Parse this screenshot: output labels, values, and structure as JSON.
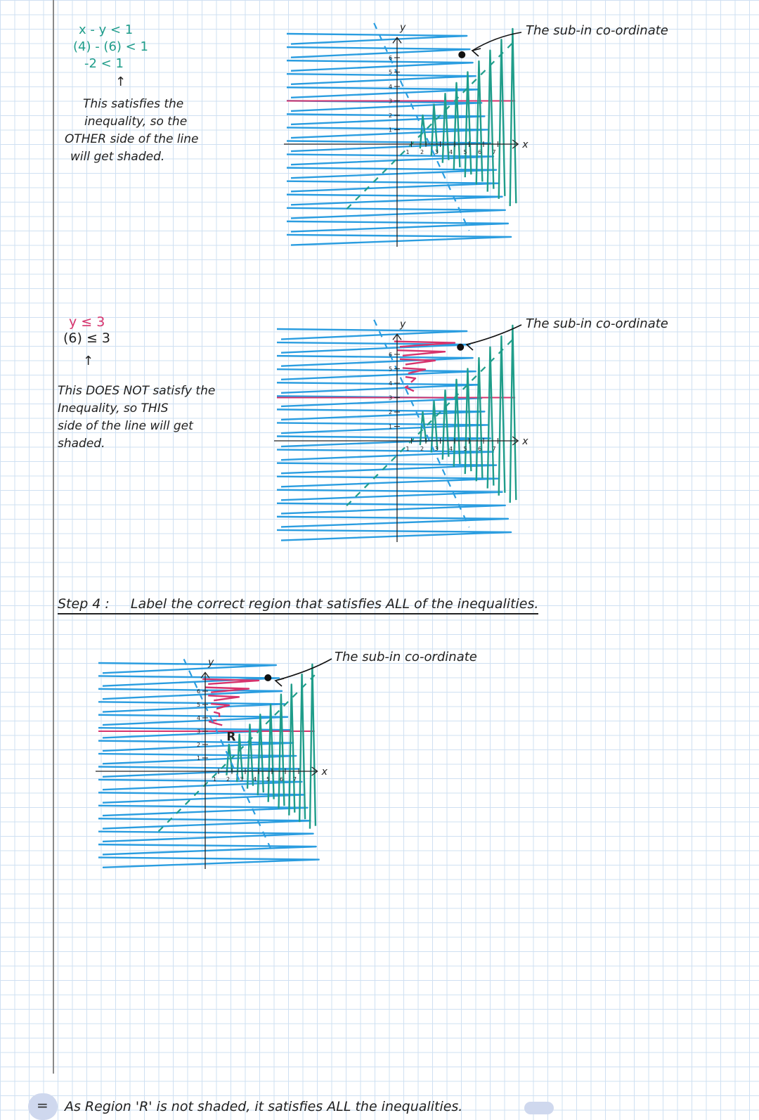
{
  "section1": {
    "equation_lines": [
      "x - y < 1",
      "(4) - (6) < 1",
      "-2  < 1"
    ],
    "arrow": "↑",
    "note_lines": [
      "This satisfies the",
      "inequality, so the",
      "OTHER side of the line",
      "will get shaded."
    ],
    "callout": "The sub-in co-ordinate"
  },
  "section2": {
    "equation_lines": [
      "y ≤ 3",
      "(6) ≤ 3"
    ],
    "arrow": "↑",
    "note_lines": [
      "This DOES NOT satisfy the",
      "Inequality, so THIS",
      "side of the line will get",
      "shaded."
    ],
    "callout": "The sub-in co-ordinate"
  },
  "step4": {
    "label": "Step 4 :",
    "text": "Label the correct region that satisfies ALL of the inequalities."
  },
  "section3": {
    "callout": "The sub-in co-ordinate",
    "region_label": "R"
  },
  "conclusion": {
    "symbol": "=",
    "text": "As Region 'R' is not shaded, it satisfies ALL the inequalities."
  },
  "graph_labels": {
    "y_axis": "y",
    "x_axis": "x",
    "y_ticks": [
      "1",
      "2",
      "3",
      "4",
      "5",
      "6"
    ],
    "x_ticks": [
      "1",
      "2",
      "3",
      "4",
      "5",
      "6",
      "7"
    ]
  },
  "colors": {
    "blue": "#2a9de0",
    "teal": "#1f9d8a",
    "pink": "#d6336c",
    "ink": "#222222"
  }
}
